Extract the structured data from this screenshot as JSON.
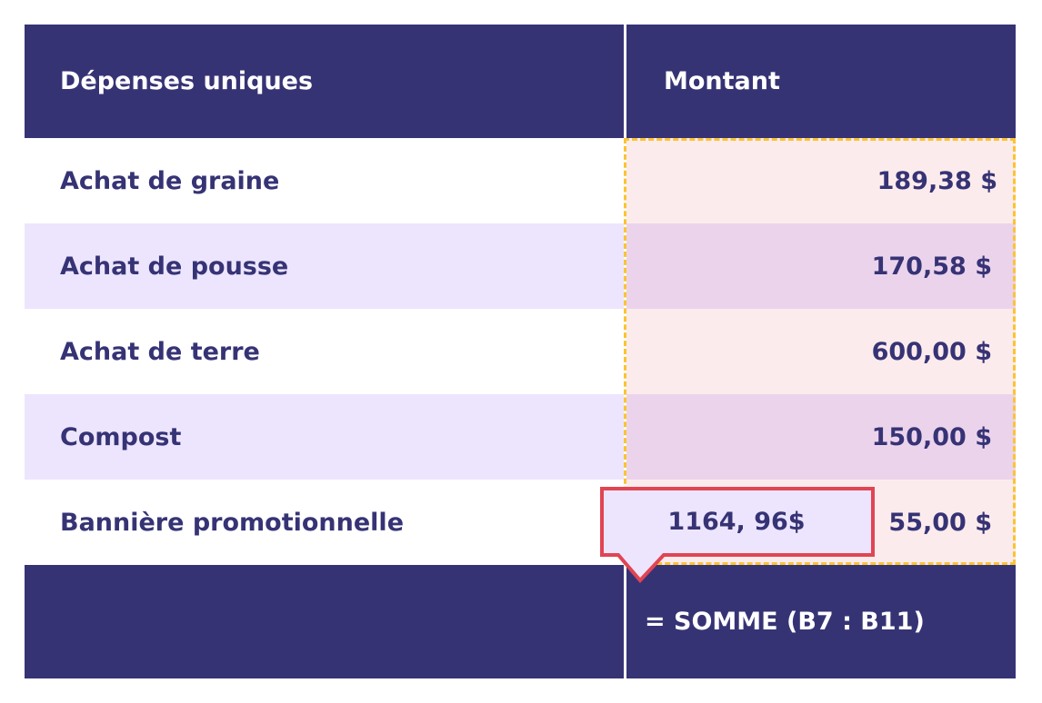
{
  "header": {
    "col1": "Dépenses uniques",
    "col2": "Montant"
  },
  "rows": [
    {
      "label": "Achat de graine",
      "amount": "189,38 $"
    },
    {
      "label": "Achat de pousse",
      "amount": "170,58 $"
    },
    {
      "label": "Achat de terre",
      "amount": "600,00 $"
    },
    {
      "label": "Compost",
      "amount": "150,00 $"
    },
    {
      "label": "Bannière promotionnelle",
      "amount": "55,00 $"
    }
  ],
  "footer": {
    "formula": "= SOMME (B7 : B11)"
  },
  "tooltip": {
    "value": "1164, 96$"
  },
  "colors": {
    "header": "#363375",
    "selection_border": "#f9c433",
    "tooltip_border": "#e04553",
    "row_alt": "#ede5fd",
    "selection_fill": "#fcebec"
  }
}
